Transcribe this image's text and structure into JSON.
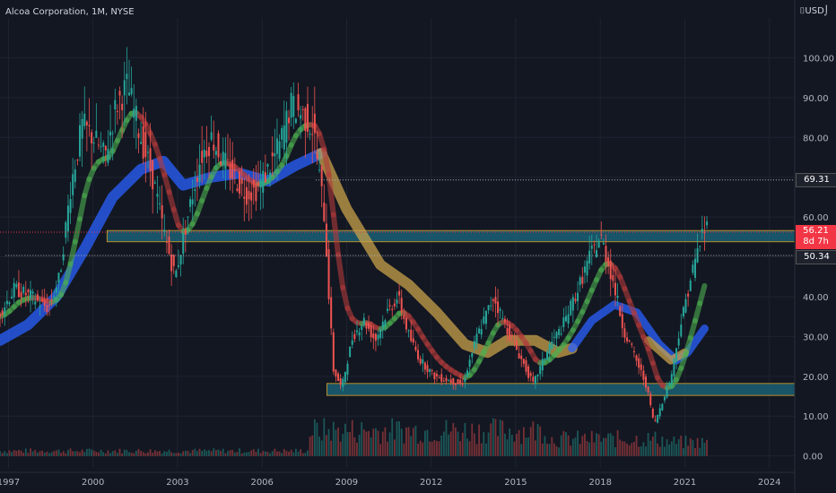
{
  "header": {
    "title": "Alcoa Corporation, 1M, NYSE",
    "currency": "USD"
  },
  "price_tags": {
    "resistance": "69.31",
    "last": "56.21",
    "countdown": "8d 7h",
    "support": "50.34"
  },
  "colors": {
    "background": "#131722",
    "grid": "#1f2330",
    "axis_text": "#b2b5be",
    "up": "#26a69a",
    "down": "#ef5350",
    "zone_fill": "#1c6a80",
    "zone_border": "#b8902a",
    "ribbon_blue": "#2962ff",
    "ribbon_gold": "#c8a24a",
    "ribbon_red": "#b33a3a",
    "ribbon_green": "#4caf50"
  },
  "chart_data": {
    "type": "candlestick",
    "title": "Alcoa Corporation, 1M, NYSE",
    "x_ticks": [
      "1997",
      "2000",
      "2003",
      "2006",
      "2009",
      "2012",
      "2015",
      "2018",
      "2021",
      "2024"
    ],
    "y_ticks": [
      0,
      10,
      20,
      30,
      40,
      50,
      60,
      70,
      80,
      90,
      100
    ],
    "y_tick_labels": [
      "0.00",
      "10.00",
      "20.00",
      "30.00",
      "40.00",
      "50.00",
      "60.00",
      "70.00",
      "80.00",
      "90.00",
      "100.00"
    ],
    "ylim": [
      -3,
      110
    ],
    "xlim": [
      1997.0,
      2025.2
    ],
    "horizontal_levels": {
      "resistance": 69.31,
      "support": 50.34,
      "last": 56.21
    },
    "zones": [
      {
        "from_year": 2000.8,
        "to_year": 2025.2,
        "low": 53.8,
        "high": 56.6
      },
      {
        "from_year": 2008.6,
        "to_year": 2025.2,
        "low": 15.2,
        "high": 18.2
      }
    ],
    "price_path": [
      [
        1997.0,
        35
      ],
      [
        1997.6,
        42
      ],
      [
        1998.2,
        40
      ],
      [
        1998.8,
        37
      ],
      [
        1999.2,
        45
      ],
      [
        1999.6,
        68
      ],
      [
        2000.0,
        83
      ],
      [
        2000.4,
        80
      ],
      [
        2000.8,
        75
      ],
      [
        2001.2,
        88
      ],
      [
        2001.6,
        93
      ],
      [
        2002.0,
        82
      ],
      [
        2002.5,
        70
      ],
      [
        2002.9,
        56
      ],
      [
        2003.3,
        45
      ],
      [
        2003.8,
        62
      ],
      [
        2004.2,
        75
      ],
      [
        2004.6,
        80
      ],
      [
        2005.0,
        74
      ],
      [
        2005.4,
        70
      ],
      [
        2005.8,
        66
      ],
      [
        2006.2,
        67
      ],
      [
        2006.6,
        72
      ],
      [
        2007.0,
        78
      ],
      [
        2007.4,
        88
      ],
      [
        2007.8,
        86
      ],
      [
        2008.2,
        82
      ],
      [
        2008.6,
        60
      ],
      [
        2008.9,
        22
      ],
      [
        2009.2,
        17
      ],
      [
        2009.6,
        30
      ],
      [
        2010.0,
        34
      ],
      [
        2010.4,
        29
      ],
      [
        2010.8,
        36
      ],
      [
        2011.2,
        40
      ],
      [
        2011.6,
        30
      ],
      [
        2012.0,
        24
      ],
      [
        2012.5,
        20
      ],
      [
        2013.0,
        19
      ],
      [
        2013.5,
        18
      ],
      [
        2014.0,
        30
      ],
      [
        2014.6,
        40
      ],
      [
        2015.0,
        33
      ],
      [
        2015.6,
        24
      ],
      [
        2016.0,
        18
      ],
      [
        2016.6,
        28
      ],
      [
        2017.0,
        32
      ],
      [
        2017.6,
        42
      ],
      [
        2018.0,
        50
      ],
      [
        2018.4,
        55
      ],
      [
        2018.8,
        45
      ],
      [
        2019.2,
        32
      ],
      [
        2019.6,
        25
      ],
      [
        2020.0,
        18
      ],
      [
        2020.3,
        8
      ],
      [
        2020.6,
        14
      ],
      [
        2020.9,
        20
      ],
      [
        2021.2,
        32
      ],
      [
        2021.6,
        45
      ],
      [
        2022.0,
        56
      ],
      [
        2022.2,
        58
      ]
    ],
    "ribbons": [
      {
        "name": "",
        "color": "#2962ff",
        "points": [
          [
            1997.0,
            29
          ],
          [
            1998.0,
            33
          ],
          [
            1999.0,
            40
          ],
          [
            2000.0,
            52
          ],
          [
            2001.0,
            65
          ],
          [
            2002.0,
            72
          ],
          [
            2002.8,
            74
          ],
          [
            2003.5,
            68
          ],
          [
            2004.5,
            70
          ],
          [
            2005.5,
            71
          ],
          [
            2006.5,
            69
          ],
          [
            2007.5,
            73
          ],
          [
            2008.4,
            76
          ]
        ],
        "thickness": 4
      },
      {
        "name": "",
        "color": "#c8a24a",
        "points": [
          [
            2008.4,
            76
          ],
          [
            2009.3,
            62
          ],
          [
            2010.5,
            48
          ],
          [
            2011.5,
            43
          ],
          [
            2012.5,
            36
          ],
          [
            2013.5,
            28
          ],
          [
            2014.3,
            26
          ],
          [
            2015.0,
            29
          ],
          [
            2016.0,
            29
          ],
          [
            2016.8,
            26
          ],
          [
            2017.3,
            27
          ]
        ],
        "thickness": 4
      },
      {
        "name": "",
        "color": "#2962ff",
        "points": [
          [
            2017.3,
            27
          ],
          [
            2018.0,
            34
          ],
          [
            2018.8,
            38
          ],
          [
            2019.6,
            36
          ],
          [
            2020.4,
            28
          ],
          [
            2021.0,
            24
          ],
          [
            2021.4,
            26
          ],
          [
            2022.0,
            32
          ]
        ],
        "thickness": 3
      },
      {
        "name": "",
        "color": "#c8a24a",
        "points": [
          [
            2020.0,
            29
          ],
          [
            2020.8,
            24
          ],
          [
            2021.3,
            26
          ]
        ],
        "thickness": 3
      }
    ],
    "volume_max": 14,
    "last_price": 56.21
  }
}
